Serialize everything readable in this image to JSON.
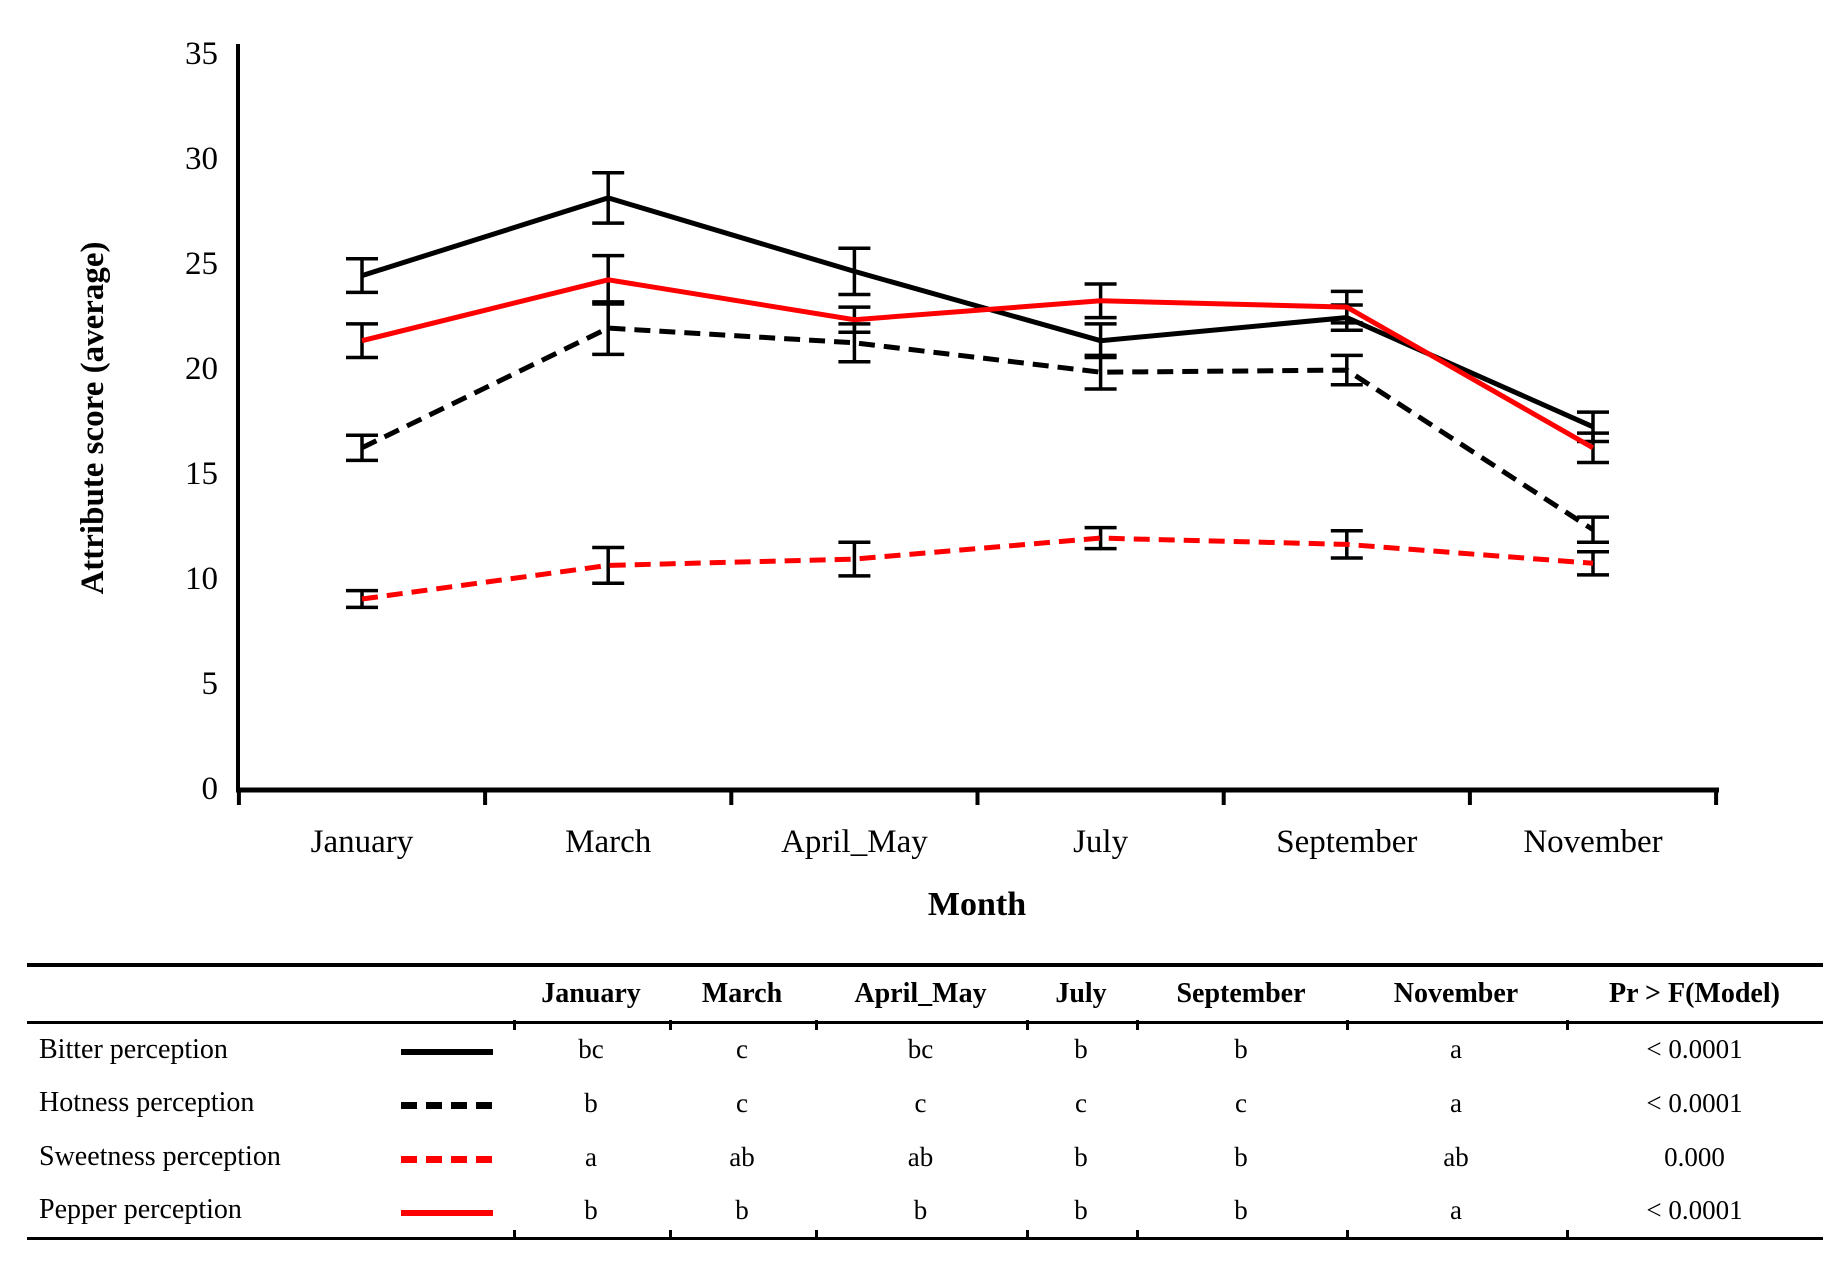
{
  "chart_data": {
    "type": "line",
    "title": "",
    "xlabel": "Month",
    "ylabel": "Attribute score (average)",
    "ylim": [
      0,
      35
    ],
    "ytick_step": 5,
    "grid": false,
    "legend_position": "table-below-chart",
    "error_bar_color": "#000000",
    "categories": [
      "January",
      "March",
      "April_May",
      "July",
      "September",
      "November"
    ],
    "series": [
      {
        "name": "Bitter perception",
        "color": "#000000",
        "dash": "solid",
        "values": [
          24.4,
          28.1,
          24.6,
          21.3,
          22.4,
          17.2
        ],
        "errors": [
          0.8,
          1.2,
          1.1,
          0.8,
          0.6,
          0.7
        ]
      },
      {
        "name": "Hotness perception",
        "color": "#000000",
        "dash": "dashed",
        "values": [
          16.2,
          21.9,
          21.2,
          19.8,
          19.9,
          12.3
        ],
        "errors": [
          0.6,
          1.25,
          0.9,
          0.8,
          0.7,
          0.6
        ]
      },
      {
        "name": "Sweetness perception",
        "color": "#ff0000",
        "dash": "dashed",
        "values": [
          9.0,
          10.6,
          10.9,
          11.9,
          11.6,
          10.7
        ],
        "errors": [
          0.4,
          0.85,
          0.8,
          0.5,
          0.65,
          0.55
        ]
      },
      {
        "name": "Pepper perception",
        "color": "#ff0000",
        "dash": "solid",
        "values": [
          21.3,
          24.2,
          22.3,
          23.2,
          22.9,
          16.2
        ],
        "errors": [
          0.8,
          1.15,
          0.6,
          0.8,
          0.75,
          0.7
        ]
      }
    ]
  },
  "table": {
    "columns": [
      "January",
      "March",
      "April_May",
      "July",
      "September",
      "November",
      "Pr > F(Model)"
    ],
    "rows": [
      {
        "label": "Bitter perception",
        "swatch_color": "#000000",
        "swatch_style": "solid",
        "cells": [
          "bc",
          "c",
          "bc",
          "b",
          "b",
          "a",
          "< 0.0001"
        ]
      },
      {
        "label": "Hotness perception",
        "swatch_color": "#000000",
        "swatch_style": "dashed",
        "cells": [
          "b",
          "c",
          "c",
          "c",
          "c",
          "a",
          "< 0.0001"
        ]
      },
      {
        "label": "Sweetness perception",
        "swatch_color": "#ff0000",
        "swatch_style": "dashed",
        "cells": [
          "a",
          "ab",
          "ab",
          "b",
          "b",
          "ab",
          "0.000"
        ]
      },
      {
        "label": "Pepper perception",
        "swatch_color": "#ff0000",
        "swatch_style": "solid",
        "cells": [
          "b",
          "b",
          "b",
          "b",
          "b",
          "a",
          "< 0.0001"
        ]
      }
    ]
  }
}
